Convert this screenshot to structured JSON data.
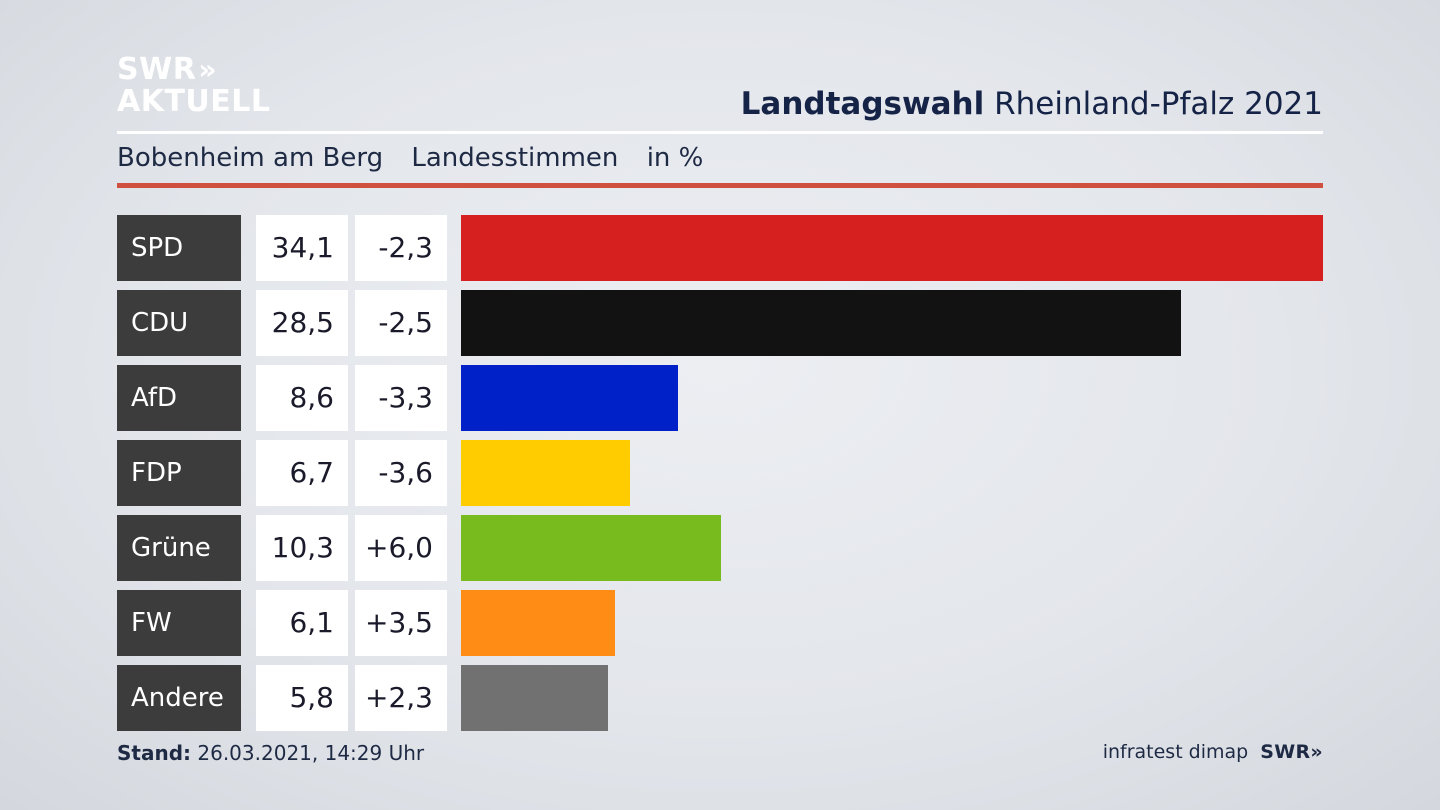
{
  "logo": {
    "line1": "SWR",
    "line1_chevrons": "»",
    "line2": "AKTUELL"
  },
  "header": {
    "title_bold": "Landtagswahl",
    "title_rest": "Rheinland-Pfalz 2021"
  },
  "subtitle": {
    "place": "Bobenheim am Berg",
    "vote_type": "Landesstimmen",
    "unit": "in %"
  },
  "accent_colors": {
    "rule": "#d0503f",
    "label_bg": "#3c3c3c"
  },
  "chart_data": {
    "type": "bar",
    "orientation": "horizontal",
    "categories": [
      "SPD",
      "CDU",
      "AfD",
      "FDP",
      "Grüne",
      "FW",
      "Andere"
    ],
    "values": [
      34.1,
      28.5,
      8.6,
      6.7,
      10.3,
      6.1,
      5.8
    ],
    "value_labels": [
      "34,1",
      "28,5",
      "8,6",
      "6,7",
      "10,3",
      "6,1",
      "5,8"
    ],
    "change_labels": [
      "-2,3",
      "-2,5",
      "-3,3",
      "-3,6",
      "+6,0",
      "+3,5",
      "+2,3"
    ],
    "changes": [
      -2.3,
      -2.5,
      -3.3,
      -3.6,
      6.0,
      3.5,
      2.3
    ],
    "colors": [
      "#d61f1f",
      "#121212",
      "#0020c8",
      "#ffcc00",
      "#78bb1e",
      "#ff8c14",
      "#717171"
    ],
    "xlim": [
      0,
      34.1
    ]
  },
  "footer": {
    "stand_label": "Stand:",
    "stand_value": "26.03.2021, 14:29 Uhr",
    "source": "infratest dimap",
    "brand": "SWR",
    "brand_chevrons": "»"
  }
}
